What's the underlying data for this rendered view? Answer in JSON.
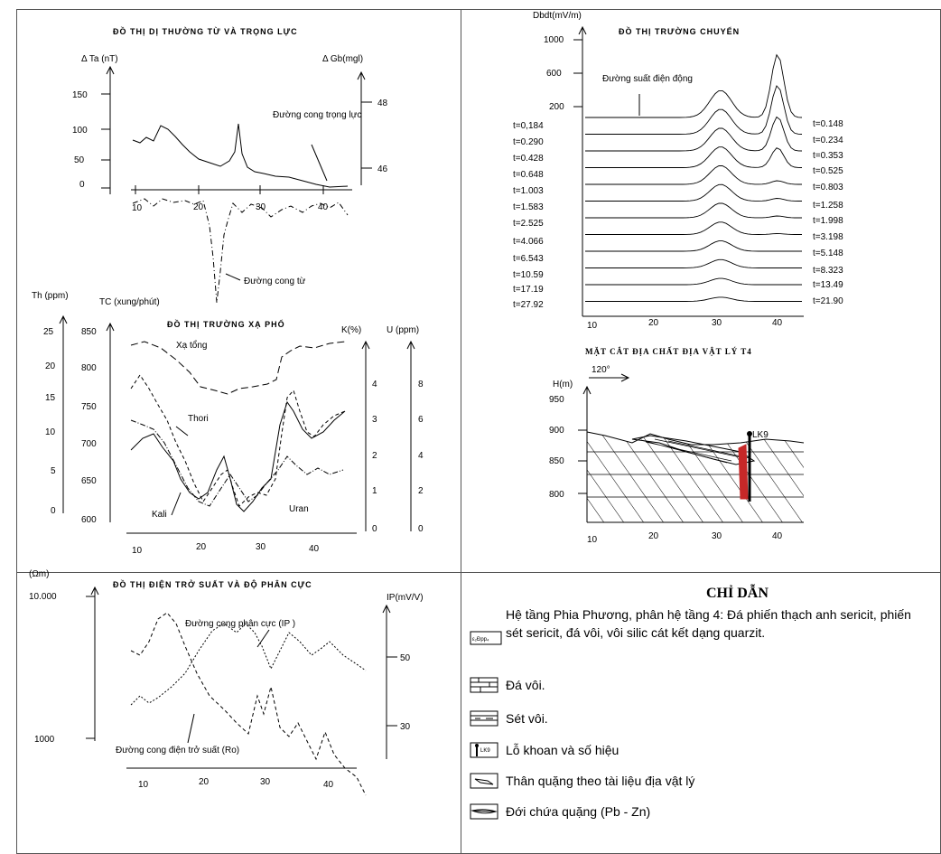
{
  "magnetic_gravity": {
    "title": "ĐỒ THỊ DỊ THƯỜNG TỪ VÀ TRỌNG LỰC",
    "left_axis_label": "Δ Ta (nT)",
    "right_axis_label": "Δ Gb(mgl)",
    "left_ticks": [
      "150",
      "100",
      "50",
      "0"
    ],
    "right_ticks": [
      "48",
      "46"
    ],
    "x_ticks": [
      "10",
      "20",
      "30",
      "40"
    ],
    "gravity_label": "Đường cong trọng lực",
    "magnetic_label": "Đường cong từ"
  },
  "radiometric": {
    "title": "ĐỒ THỊ TRƯỜNG XẠ PHỔ",
    "th_axis_label": "Th (ppm)",
    "tc_axis_label": "TC (xung/phút)",
    "k_axis_label": "K(%)",
    "u_axis_label": "U (ppm)",
    "th_ticks": [
      "25",
      "20",
      "15",
      "10",
      "5",
      "0"
    ],
    "tc_ticks": [
      "850",
      "800",
      "750",
      "700",
      "650",
      "600"
    ],
    "k_ticks": [
      "4",
      "3",
      "2",
      "1",
      "0"
    ],
    "u_ticks": [
      "8",
      "6",
      "4",
      "2",
      "0"
    ],
    "x_ticks": [
      "10",
      "20",
      "30",
      "40"
    ],
    "labels": {
      "total": "Xạ tổng",
      "thorium": "Thori",
      "potassium": "Kali",
      "uranium": "Uran"
    }
  },
  "resistivity": {
    "title": "ĐỒ THỊ ĐIỆN TRỞ SUẤT VÀ ĐỘ PHÂN CỰC",
    "left_axis_label": "(Ωm)",
    "right_axis_label": "IP(mV/V)",
    "left_ticks": [
      "10.000",
      "1000"
    ],
    "right_ticks": [
      "50",
      "30"
    ],
    "x_ticks": [
      "10",
      "20",
      "30",
      "40"
    ],
    "ip_label": "Đường cong phân cực (IP )",
    "rho_label": "Đường cong điện trở suất (Ro)"
  },
  "transient": {
    "title": "ĐỒ THỊ TRƯỜNG CHUYỂN",
    "y_axis_label": "Dbdt(mV/m)",
    "y_ticks": [
      "1000",
      "600",
      "200"
    ],
    "emf_label": "Đường suất điện động",
    "left_times": [
      "t=0,184",
      "t=0.290",
      "t=0.428",
      "t=0.648",
      "t=1.003",
      "t=1.583",
      "t=2.525",
      "t=4.066",
      "t=6.543",
      "t=10.59",
      "t=17.19",
      "t=27.92"
    ],
    "right_times": [
      "t=0.148",
      "t=0.234",
      "t=0.353",
      "t=0.525",
      "t=0.803",
      "t=1.258",
      "t=1.998",
      "t=3.198",
      "t=5.148",
      "t=8.323",
      "t=13.49",
      "t=21.90"
    ],
    "x_ticks": [
      "10",
      "20",
      "30",
      "40"
    ]
  },
  "section": {
    "title": "MẶT CẮT ĐỊA CHẤT ĐỊA VẬT LÝ T4",
    "azimuth": "120°",
    "y_axis_label": "H(m)",
    "y_ticks": [
      "950",
      "900",
      "850",
      "800"
    ],
    "borehole_label": "LK9",
    "x_ticks": [
      "10",
      "20",
      "30",
      "40"
    ]
  },
  "legend": {
    "title": "CHỈ DẪN",
    "formation_code": "ε₂Đpp₄",
    "items": [
      {
        "symbol": "formation",
        "text": "Hệ tầng Phia Phương, phân hệ tầng 4: Đá phiến thạch anh sericit, phiến sét sericit, đá vôi, vôi silic cát kết dạng quarzit."
      },
      {
        "symbol": "limestone",
        "text": "Đá vôi."
      },
      {
        "symbol": "marl",
        "text": "Sét vôi."
      },
      {
        "symbol": "borehole",
        "text": "Lỗ khoan  và số hiệu"
      },
      {
        "symbol": "orebody",
        "text": "Thân quặng theo tài liệu địa vật lý"
      },
      {
        "symbol": "orezone",
        "text": "Đới chứa quặng (Pb - Zn)"
      }
    ],
    "borehole_symbol_label": "LK9"
  }
}
